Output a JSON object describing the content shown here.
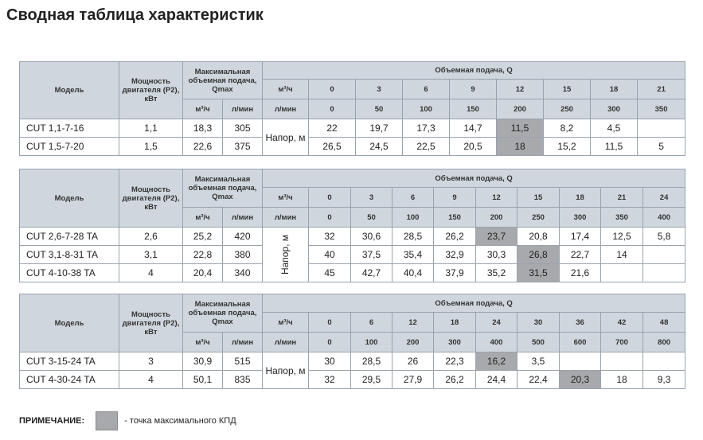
{
  "title": "Сводная таблица характеристик",
  "headers": {
    "model": "Модель",
    "power": "Мощность двигателя (Р2), кВт",
    "qmax": "Максимальная объемная подача, Qmax",
    "qmax_m3h": "м³/ч",
    "qmax_lmin": "л/мин",
    "flow": "Объемная подача, Q",
    "row_m3h": "м³/ч",
    "row_lmin": "л/мин"
  },
  "head_label": "Напор, м",
  "tables": [
    {
      "m3h": [
        "0",
        "3",
        "6",
        "9",
        "12",
        "15",
        "18",
        "21"
      ],
      "lmin": [
        "0",
        "50",
        "100",
        "150",
        "200",
        "250",
        "300",
        "350"
      ],
      "rows": [
        {
          "model": "CUT 1,1-7-16",
          "power": "1,1",
          "qmax_m3h": "18,3",
          "qmax_lmin": "305",
          "values": [
            "22",
            "19,7",
            "17,3",
            "14,7",
            "11,5",
            "8,2",
            "4,5",
            ""
          ]
        },
        {
          "model": "CUT 1,5-7-20",
          "power": "1,5",
          "qmax_m3h": "22,6",
          "qmax_lmin": "375",
          "values": [
            "26,5",
            "24,5",
            "22,5",
            "20,5",
            "18",
            "15,2",
            "11,5",
            "5"
          ]
        }
      ]
    },
    {
      "m3h": [
        "0",
        "3",
        "6",
        "9",
        "12",
        "15",
        "18",
        "21",
        "24"
      ],
      "lmin": [
        "0",
        "50",
        "100",
        "150",
        "200",
        "250",
        "300",
        "350",
        "400"
      ],
      "rows": [
        {
          "model": "CUT 2,6-7-28 TA",
          "power": "2,6",
          "qmax_m3h": "25,2",
          "qmax_lmin": "420",
          "values": [
            "32",
            "30,6",
            "28,5",
            "26,2",
            "23,7",
            "20,8",
            "17,4",
            "12,5",
            "5,8"
          ]
        },
        {
          "model": "CUT 3,1-8-31 TA",
          "power": "3,1",
          "qmax_m3h": "22,8",
          "qmax_lmin": "380",
          "values": [
            "40",
            "37,5",
            "35,4",
            "32,9",
            "30,3",
            "26,8",
            "22,7",
            "14",
            ""
          ]
        },
        {
          "model": "CUT 4-10-38 TA",
          "power": "4",
          "qmax_m3h": "20,4",
          "qmax_lmin": "340",
          "values": [
            "45",
            "42,7",
            "40,4",
            "37,9",
            "35,2",
            "31,5",
            "21,6",
            "",
            ""
          ]
        }
      ]
    },
    {
      "m3h": [
        "0",
        "6",
        "12",
        "18",
        "24",
        "30",
        "36",
        "42",
        "48"
      ],
      "lmin": [
        "0",
        "100",
        "200",
        "300",
        "400",
        "500",
        "600",
        "700",
        "800"
      ],
      "rows": [
        {
          "model": "CUT 3-15-24 TA",
          "power": "3",
          "qmax_m3h": "30,9",
          "qmax_lmin": "515",
          "values": [
            "30",
            "28,5",
            "26",
            "22,3",
            "16,2",
            "3,5",
            "",
            "",
            ""
          ]
        },
        {
          "model": "CUT 4-30-24 TA",
          "power": "4",
          "qmax_m3h": "50,1",
          "qmax_lmin": "835",
          "values": [
            "32",
            "29,5",
            "27,9",
            "26,2",
            "24,4",
            "22,4",
            "20,3",
            "18",
            "9,3"
          ]
        }
      ]
    }
  ],
  "legend": {
    "label": "ПРИМЕЧАНИЕ:",
    "text": "- точка максимального КПД"
  },
  "colors": {
    "header_bg": "#cfd6dd",
    "highlight": "#a7a9ac",
    "border": "#9aa3ad"
  }
}
